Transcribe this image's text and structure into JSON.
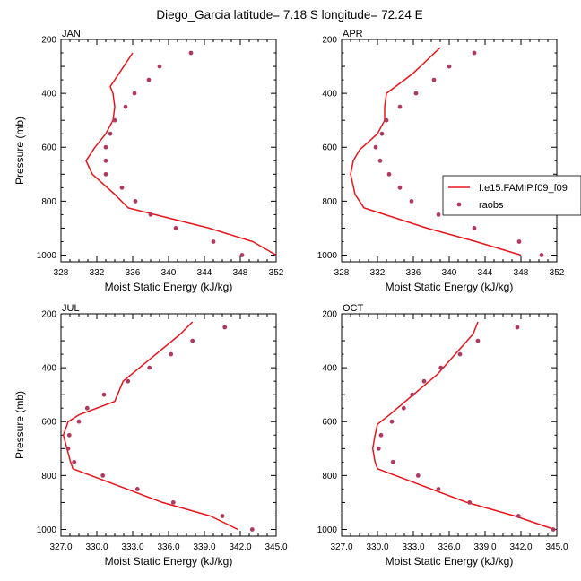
{
  "title": "Diego_Garcia  latitude= 7.18 S longitude= 72.24 E",
  "colors": {
    "model_line": "#e8141b",
    "raobs_marker": "#b03a5f",
    "axis": "#000000",
    "background": "#ffffff"
  },
  "legend": {
    "model_label": "f.e15.FAMIP.f09_f09",
    "obs_label": "raobs"
  },
  "chart_data": [
    {
      "type": "line",
      "panel": "JAN",
      "xlabel": "Moist Static Energy (kJ/kg)",
      "ylabel": "Pressure (mb)",
      "xlim": [
        328,
        352
      ],
      "ylim": [
        200,
        1025
      ],
      "y_inverted": true,
      "xticks": [
        328,
        332,
        336,
        340,
        344,
        348,
        352
      ],
      "xtick_labels": [
        "328",
        "332",
        "336",
        "340",
        "344",
        "348",
        "352"
      ],
      "yticks": [
        200,
        400,
        600,
        800,
        1000
      ],
      "ytick_labels": [
        "200",
        "400",
        "600",
        "800",
        "1000"
      ],
      "series": [
        {
          "name": "f.e15.FAMIP.f09_f09",
          "kind": "line",
          "x": [
            352.0,
            349.4,
            344.5,
            335.5,
            334.0,
            331.5,
            330.8,
            331.8,
            333.0,
            333.8,
            334.0,
            333.8,
            333.5,
            335.0,
            336.0
          ],
          "y": [
            1000,
            950,
            900,
            825,
            775,
            700,
            650,
            600,
            550,
            500,
            450,
            400,
            375,
            300,
            250
          ]
        },
        {
          "name": "raobs",
          "kind": "markers",
          "x": [
            348.2,
            345.0,
            340.8,
            338.0,
            336.3,
            334.8,
            333.0,
            333.0,
            333.0,
            333.5,
            334.0,
            335.2,
            336.2,
            337.8,
            339.0,
            342.5
          ],
          "y": [
            1000,
            950,
            900,
            850,
            800,
            750,
            700,
            650,
            600,
            550,
            500,
            450,
            400,
            350,
            300,
            250
          ]
        }
      ]
    },
    {
      "type": "line",
      "panel": "APR",
      "xlabel": "Moist Static Energy (kJ/kg)",
      "ylabel": "Pressure (mb)",
      "xlim": [
        328,
        352
      ],
      "ylim": [
        200,
        1025
      ],
      "y_inverted": true,
      "xticks": [
        328,
        332,
        336,
        340,
        344,
        348,
        352
      ],
      "xtick_labels": [
        "328",
        "332",
        "336",
        "340",
        "344",
        "348",
        "352"
      ],
      "yticks": [
        200,
        400,
        600,
        800,
        1000
      ],
      "ytick_labels": [
        "200",
        "400",
        "600",
        "800",
        "1000"
      ],
      "series": [
        {
          "name": "f.e15.FAMIP.f09_f09",
          "kind": "line",
          "x": [
            348.0,
            343.0,
            337.5,
            330.5,
            329.5,
            329.0,
            329.3,
            330.0,
            332.0,
            332.8,
            332.8,
            333.0,
            336.0,
            339.0
          ],
          "y": [
            1000,
            950,
            900,
            825,
            775,
            700,
            650,
            610,
            550,
            500,
            450,
            400,
            325,
            230
          ]
        },
        {
          "name": "raobs",
          "kind": "markers",
          "x": [
            350.3,
            347.8,
            342.8,
            338.8,
            335.8,
            334.5,
            333.3,
            332.3,
            331.8,
            332.5,
            333.0,
            334.5,
            336.3,
            338.3,
            340.0,
            342.8
          ],
          "y": [
            1000,
            950,
            900,
            850,
            800,
            750,
            700,
            650,
            600,
            550,
            500,
            450,
            400,
            350,
            300,
            250
          ]
        }
      ]
    },
    {
      "type": "line",
      "panel": "JUL",
      "xlabel": "Moist Static Energy (kJ/kg)",
      "ylabel": "Pressure (mb)",
      "xlim": [
        327,
        345
      ],
      "ylim": [
        200,
        1025
      ],
      "y_inverted": true,
      "xticks": [
        327,
        330,
        333,
        336,
        339,
        342,
        345
      ],
      "xtick_labels": [
        "327.0",
        "330.0",
        "333.0",
        "336.0",
        "339.0",
        "342.0",
        "345.0"
      ],
      "yticks": [
        200,
        400,
        600,
        800,
        1000
      ],
      "ytick_labels": [
        "200",
        "400",
        "600",
        "800",
        "1000"
      ],
      "series": [
        {
          "name": "f.e15.FAMIP.f09_f09",
          "kind": "line",
          "x": [
            341.8,
            339.5,
            335.5,
            328.0,
            327.8,
            327.5,
            327.2,
            327.6,
            328.5,
            331.5,
            332.2,
            337.0,
            338.0
          ],
          "y": [
            1000,
            950,
            900,
            775,
            750,
            700,
            650,
            600,
            575,
            525,
            450,
            275,
            230
          ]
        },
        {
          "name": "raobs",
          "kind": "markers",
          "x": [
            343.0,
            340.5,
            336.4,
            333.4,
            330.5,
            328.1,
            327.6,
            327.7,
            328.5,
            329.2,
            330.6,
            332.6,
            334.4,
            336.2,
            338.0,
            340.7
          ],
          "y": [
            1000,
            950,
            900,
            850,
            800,
            750,
            700,
            650,
            600,
            550,
            500,
            450,
            400,
            350,
            300,
            250
          ]
        }
      ]
    },
    {
      "type": "line",
      "panel": "OCT",
      "xlabel": "Moist Static Energy (kJ/kg)",
      "ylabel": "Pressure (mb)",
      "xlim": [
        327,
        345
      ],
      "ylim": [
        200,
        1025
      ],
      "y_inverted": true,
      "xticks": [
        327,
        330,
        333,
        336,
        339,
        342,
        345
      ],
      "xtick_labels": [
        "327.0",
        "330.0",
        "333.0",
        "336.0",
        "339.0",
        "342.0",
        "345.0"
      ],
      "yticks": [
        200,
        400,
        600,
        800,
        1000
      ],
      "ytick_labels": [
        "200",
        "400",
        "600",
        "800",
        "1000"
      ],
      "series": [
        {
          "name": "f.e15.FAMIP.f09_f09",
          "kind": "line",
          "x": [
            344.8,
            341.5,
            337.5,
            330.0,
            329.8,
            329.6,
            329.8,
            330.0,
            331.0,
            333.0,
            335.0,
            338.0,
            338.4
          ],
          "y": [
            1000,
            950,
            900,
            775,
            750,
            700,
            650,
            610,
            575,
            500,
            425,
            275,
            230
          ]
        },
        {
          "name": "raobs",
          "kind": "markers",
          "x": [
            344.7,
            341.8,
            337.7,
            335.1,
            333.4,
            331.3,
            330.1,
            330.3,
            331.2,
            332.2,
            332.9,
            333.9,
            335.3,
            336.9,
            338.4,
            341.7
          ],
          "y": [
            1000,
            950,
            900,
            850,
            800,
            750,
            700,
            650,
            600,
            550,
            500,
            450,
            400,
            350,
            300,
            250
          ]
        }
      ]
    }
  ]
}
